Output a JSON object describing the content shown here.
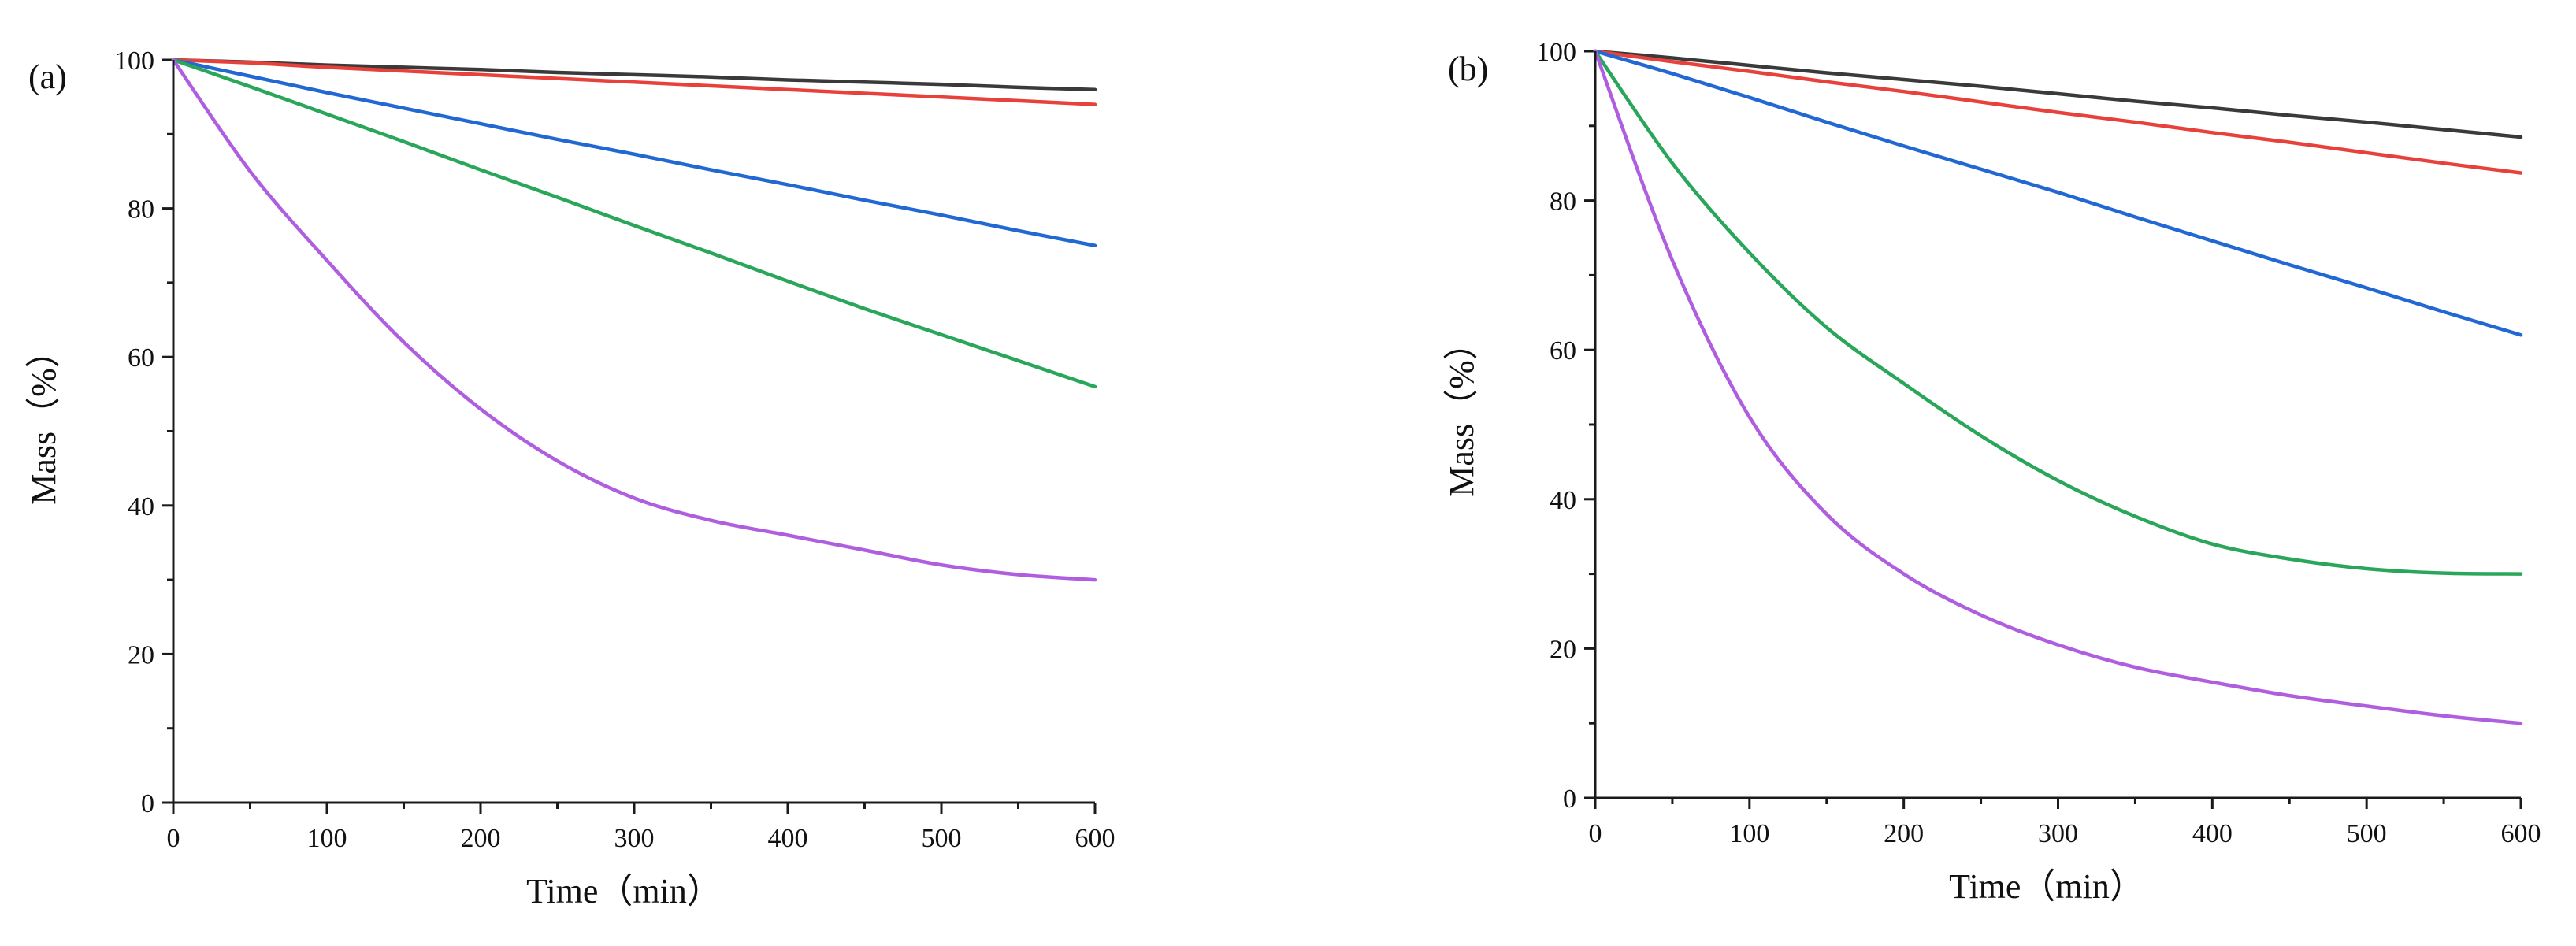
{
  "chart_data": [
    {
      "type": "line",
      "panel_label": "(a)",
      "title": "",
      "xlabel": "Time（min）",
      "ylabel": "Mass（%）",
      "xlim": [
        0,
        600
      ],
      "ylim": [
        0,
        100
      ],
      "xticks": [
        0,
        100,
        200,
        300,
        400,
        500,
        600
      ],
      "yticks": [
        0,
        20,
        40,
        60,
        80,
        100
      ],
      "grid": false,
      "legend": "none",
      "x": [
        0,
        50,
        100,
        150,
        200,
        250,
        300,
        350,
        400,
        450,
        500,
        550,
        600
      ],
      "series": [
        {
          "name": "black",
          "color": "#3a3a3a",
          "values": [
            100,
            99.7,
            99.3,
            99.0,
            98.7,
            98.3,
            98.0,
            97.7,
            97.3,
            97.0,
            96.7,
            96.3,
            96.0
          ]
        },
        {
          "name": "red",
          "color": "#e8413c",
          "values": [
            100,
            99.6,
            99.0,
            98.5,
            98.0,
            97.5,
            97.0,
            96.5,
            96.0,
            95.5,
            95.0,
            94.5,
            94.0
          ]
        },
        {
          "name": "blue",
          "color": "#2268d4",
          "values": [
            100,
            97.8,
            95.6,
            93.5,
            91.4,
            89.3,
            87.3,
            85.2,
            83.2,
            81.1,
            79.1,
            77.0,
            75.0
          ]
        },
        {
          "name": "green",
          "color": "#2aa65a",
          "values": [
            100,
            96.4,
            92.7,
            89.0,
            85.2,
            81.5,
            77.7,
            74.0,
            70.2,
            66.5,
            63.0,
            59.5,
            56.0
          ]
        },
        {
          "name": "purple",
          "color": "#b05ee0",
          "values": [
            100,
            85.0,
            73.0,
            62.0,
            53.0,
            46.0,
            41.0,
            38.0,
            36.0,
            34.0,
            32.0,
            30.7,
            30.0
          ]
        }
      ]
    },
    {
      "type": "line",
      "panel_label": "(b)",
      "title": "",
      "xlabel": "Time（min）",
      "ylabel": "Mass（%）",
      "xlim": [
        0,
        600
      ],
      "ylim": [
        0,
        100
      ],
      "xticks": [
        0,
        100,
        200,
        300,
        400,
        500,
        600
      ],
      "yticks": [
        0,
        20,
        40,
        60,
        80,
        100
      ],
      "grid": false,
      "legend": "none",
      "x": [
        0,
        50,
        100,
        150,
        200,
        250,
        300,
        350,
        400,
        450,
        500,
        550,
        600
      ],
      "series": [
        {
          "name": "black",
          "color": "#3a3a3a",
          "values": [
            100,
            99.1,
            98.1,
            97.1,
            96.2,
            95.3,
            94.3,
            93.3,
            92.4,
            91.4,
            90.5,
            89.5,
            88.5
          ]
        },
        {
          "name": "red",
          "color": "#e8413c",
          "values": [
            100,
            98.6,
            97.3,
            95.9,
            94.6,
            93.2,
            91.8,
            90.5,
            89.1,
            87.8,
            86.4,
            85.0,
            83.7
          ]
        },
        {
          "name": "blue",
          "color": "#2268d4",
          "values": [
            100,
            97.0,
            93.8,
            90.5,
            87.3,
            84.2,
            81.1,
            77.8,
            74.6,
            71.4,
            68.3,
            65.1,
            62.0
          ]
        },
        {
          "name": "green",
          "color": "#2aa65a",
          "values": [
            100,
            85.0,
            73.0,
            63.0,
            55.5,
            48.5,
            42.5,
            37.7,
            34.0,
            32.0,
            30.7,
            30.1,
            30.0
          ]
        },
        {
          "name": "purple",
          "color": "#b05ee0",
          "values": [
            100,
            72.0,
            51.0,
            38.0,
            30.0,
            24.5,
            20.5,
            17.5,
            15.5,
            13.7,
            12.3,
            11.0,
            10.0
          ]
        }
      ]
    }
  ]
}
